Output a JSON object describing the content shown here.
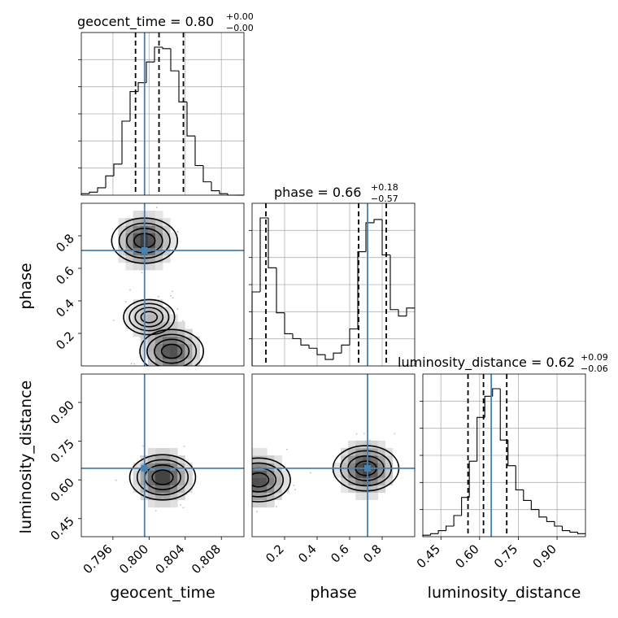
{
  "chart_data": {
    "type": "corner",
    "parameters": [
      "geocent_time",
      "phase",
      "luminosity_distance"
    ],
    "titles": [
      {
        "param": "geocent_time",
        "text": "geocent_time = 0.80",
        "sup": "+0.00",
        "sub": "−0.00"
      },
      {
        "param": "phase",
        "text": "phase = 0.66",
        "sup": "+0.18",
        "sub": "−0.57"
      },
      {
        "param": "luminosity_distance",
        "text": "luminosity_distance = 0.62",
        "sup": "+0.09",
        "sub": "−0.06"
      }
    ],
    "axis_labels": {
      "x": [
        "geocent_time",
        "phase",
        "luminosity_distance"
      ],
      "y": [
        "phase",
        "luminosity_distance"
      ]
    },
    "ranges": {
      "geocent_time": [
        0.7925,
        0.8105
      ],
      "phase": [
        0.0,
        1.0
      ],
      "luminosity_distance": [
        0.38,
        1.01
      ]
    },
    "ticks": {
      "geocent_time": [
        0.796,
        0.8,
        0.804,
        0.808
      ],
      "phase": [
        0.2,
        0.4,
        0.6,
        0.8
      ],
      "luminosity_distance": [
        0.45,
        0.6,
        0.75,
        0.9
      ]
    },
    "tick_labels": {
      "geocent_time": [
        "0.796",
        "0.800",
        "0.804",
        "0.808"
      ],
      "phase": [
        "0.2",
        "0.4",
        "0.6",
        "0.8"
      ],
      "luminosity_distance": [
        "0.45",
        "0.60",
        "0.75",
        "0.90"
      ]
    },
    "truths": {
      "geocent_time": 0.7995,
      "phase": 0.71,
      "luminosity_distance": 0.645
    },
    "quantiles": {
      "geocent_time": [
        0.7985,
        0.8011,
        0.8038
      ],
      "phase": [
        0.085,
        0.655,
        0.825
      ],
      "luminosity_distance": [
        0.555,
        0.615,
        0.705
      ]
    },
    "histograms": {
      "geocent_time": {
        "edges_start": 0.7925,
        "bin_width": 0.0009,
        "counts": [
          1,
          2,
          5,
          13,
          21,
          50,
          70,
          76,
          90,
          100,
          99,
          84,
          63,
          40,
          20,
          9,
          3,
          1,
          0,
          0
        ]
      },
      "phase": {
        "edges_start": 0.0,
        "bin_width": 0.05,
        "counts": [
          46,
          92,
          61,
          33,
          20,
          17,
          13,
          11,
          7,
          4,
          8,
          13,
          23,
          71,
          89,
          91,
          69,
          35,
          31,
          36
        ]
      },
      "luminosity_distance": {
        "edges_start": 0.38,
        "bin_width": 0.03,
        "counts": [
          1,
          2,
          4,
          7,
          14,
          26,
          50,
          79,
          93,
          98,
          64,
          47,
          31,
          24,
          18,
          13,
          10,
          7,
          4,
          3,
          2
        ]
      }
    },
    "density_peaks": {
      "phase_vs_geocent_time": [
        {
          "x": 0.7995,
          "y": 0.77,
          "weight": 1.0
        },
        {
          "x": 0.8025,
          "y": 0.09,
          "weight": 0.9
        },
        {
          "x": 0.8,
          "y": 0.3,
          "weight": 0.35
        }
      ],
      "luminosity_distance_vs_geocent_time": [
        {
          "x": 0.8015,
          "y": 0.61,
          "weight": 1.0
        }
      ],
      "luminosity_distance_vs_phase": [
        {
          "x": 0.04,
          "y": 0.6,
          "weight": 0.9
        },
        {
          "x": 0.7,
          "y": 0.645,
          "weight": 1.0
        }
      ]
    },
    "grid": true
  }
}
